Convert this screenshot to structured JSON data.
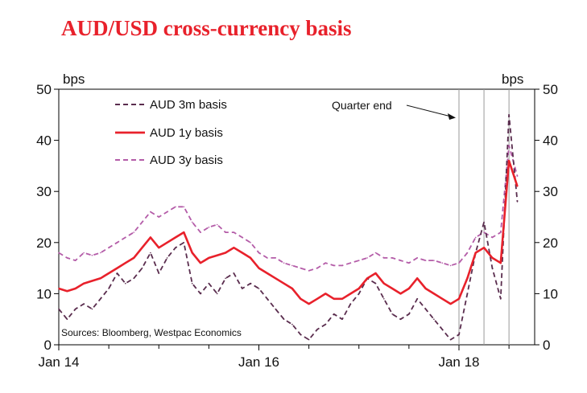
{
  "chart_data": {
    "type": "line",
    "title": "AUD/USD cross-currency basis",
    "y_left_unit": "bps",
    "y_right_unit": "bps",
    "ylim": [
      0,
      50
    ],
    "yticks": [
      0,
      10,
      20,
      30,
      40,
      50
    ],
    "x_range": [
      "2014-01",
      "2018-08"
    ],
    "x_ticks": [
      {
        "label": "Jan 14",
        "date": "2014-01"
      },
      {
        "label": "Jan 16",
        "date": "2016-01"
      },
      {
        "label": "Jan 18",
        "date": "2018-01"
      }
    ],
    "annotation": "Quarter end",
    "quarter_end_lines": [
      "2018-01",
      "2018-04",
      "2018-07"
    ],
    "source": "Sources: Bloomberg, Westpac Economics",
    "grid": false,
    "legend_position": "top-left",
    "series": [
      {
        "name": "AUD 3m basis",
        "style": "dashed",
        "color": "#5a2d4e",
        "points": [
          [
            "2014-01",
            7
          ],
          [
            "2014-02",
            5
          ],
          [
            "2014-03",
            7
          ],
          [
            "2014-04",
            8
          ],
          [
            "2014-05",
            7
          ],
          [
            "2014-06",
            9
          ],
          [
            "2014-07",
            11
          ],
          [
            "2014-08",
            14
          ],
          [
            "2014-09",
            12
          ],
          [
            "2014-10",
            13
          ],
          [
            "2014-11",
            15
          ],
          [
            "2014-12",
            18
          ],
          [
            "2015-01",
            14
          ],
          [
            "2015-02",
            17
          ],
          [
            "2015-03",
            19
          ],
          [
            "2015-04",
            20
          ],
          [
            "2015-05",
            12
          ],
          [
            "2015-06",
            10
          ],
          [
            "2015-07",
            12
          ],
          [
            "2015-08",
            10
          ],
          [
            "2015-09",
            13
          ],
          [
            "2015-10",
            14
          ],
          [
            "2015-11",
            11
          ],
          [
            "2015-12",
            12
          ],
          [
            "2016-01",
            11
          ],
          [
            "2016-02",
            9
          ],
          [
            "2016-03",
            7
          ],
          [
            "2016-04",
            5
          ],
          [
            "2016-05",
            4
          ],
          [
            "2016-06",
            2
          ],
          [
            "2016-07",
            1
          ],
          [
            "2016-08",
            3
          ],
          [
            "2016-09",
            4
          ],
          [
            "2016-10",
            6
          ],
          [
            "2016-11",
            5
          ],
          [
            "2016-12",
            8
          ],
          [
            "2017-01",
            10
          ],
          [
            "2017-02",
            13
          ],
          [
            "2017-03",
            12
          ],
          [
            "2017-04",
            9
          ],
          [
            "2017-05",
            6
          ],
          [
            "2017-06",
            5
          ],
          [
            "2017-07",
            6
          ],
          [
            "2017-08",
            9
          ],
          [
            "2017-09",
            7
          ],
          [
            "2017-10",
            5
          ],
          [
            "2017-11",
            3
          ],
          [
            "2017-12",
            1
          ],
          [
            "2018-01",
            2
          ],
          [
            "2018-02",
            10
          ],
          [
            "2018-03",
            18
          ],
          [
            "2018-04",
            24
          ],
          [
            "2018-05",
            15
          ],
          [
            "2018-06",
            9
          ],
          [
            "2018-07",
            45
          ],
          [
            "2018-08",
            28
          ]
        ]
      },
      {
        "name": "AUD 1y basis",
        "style": "solid",
        "color": "#e8212b",
        "points": [
          [
            "2014-01",
            11
          ],
          [
            "2014-02",
            10.5
          ],
          [
            "2014-03",
            11
          ],
          [
            "2014-04",
            12
          ],
          [
            "2014-05",
            12.5
          ],
          [
            "2014-06",
            13
          ],
          [
            "2014-07",
            14
          ],
          [
            "2014-08",
            15
          ],
          [
            "2014-09",
            16
          ],
          [
            "2014-10",
            17
          ],
          [
            "2014-11",
            19
          ],
          [
            "2014-12",
            21
          ],
          [
            "2015-01",
            19
          ],
          [
            "2015-02",
            20
          ],
          [
            "2015-03",
            21
          ],
          [
            "2015-04",
            22
          ],
          [
            "2015-05",
            18
          ],
          [
            "2015-06",
            16
          ],
          [
            "2015-07",
            17
          ],
          [
            "2015-08",
            17.5
          ],
          [
            "2015-09",
            18
          ],
          [
            "2015-10",
            19
          ],
          [
            "2015-11",
            18
          ],
          [
            "2015-12",
            17
          ],
          [
            "2016-01",
            15
          ],
          [
            "2016-02",
            14
          ],
          [
            "2016-03",
            13
          ],
          [
            "2016-04",
            12
          ],
          [
            "2016-05",
            11
          ],
          [
            "2016-06",
            9
          ],
          [
            "2016-07",
            8
          ],
          [
            "2016-08",
            9
          ],
          [
            "2016-09",
            10
          ],
          [
            "2016-10",
            9
          ],
          [
            "2016-11",
            9
          ],
          [
            "2016-12",
            10
          ],
          [
            "2017-01",
            11
          ],
          [
            "2017-02",
            13
          ],
          [
            "2017-03",
            14
          ],
          [
            "2017-04",
            12
          ],
          [
            "2017-05",
            11
          ],
          [
            "2017-06",
            10
          ],
          [
            "2017-07",
            11
          ],
          [
            "2017-08",
            13
          ],
          [
            "2017-09",
            11
          ],
          [
            "2017-10",
            10
          ],
          [
            "2017-11",
            9
          ],
          [
            "2017-12",
            8
          ],
          [
            "2018-01",
            9
          ],
          [
            "2018-02",
            13
          ],
          [
            "2018-03",
            18
          ],
          [
            "2018-04",
            19
          ],
          [
            "2018-05",
            17
          ],
          [
            "2018-06",
            16
          ],
          [
            "2018-07",
            36
          ],
          [
            "2018-08",
            31
          ]
        ]
      },
      {
        "name": "AUD 3y basis",
        "style": "dashed",
        "color": "#b45ca8",
        "points": [
          [
            "2014-01",
            18
          ],
          [
            "2014-02",
            17
          ],
          [
            "2014-03",
            16.5
          ],
          [
            "2014-04",
            18
          ],
          [
            "2014-05",
            17.5
          ],
          [
            "2014-06",
            18
          ],
          [
            "2014-07",
            19
          ],
          [
            "2014-08",
            20
          ],
          [
            "2014-09",
            21
          ],
          [
            "2014-10",
            22
          ],
          [
            "2014-11",
            24
          ],
          [
            "2014-12",
            26
          ],
          [
            "2015-01",
            25
          ],
          [
            "2015-02",
            26
          ],
          [
            "2015-03",
            27
          ],
          [
            "2015-04",
            27
          ],
          [
            "2015-05",
            24
          ],
          [
            "2015-06",
            22
          ],
          [
            "2015-07",
            23
          ],
          [
            "2015-08",
            23.5
          ],
          [
            "2015-09",
            22
          ],
          [
            "2015-10",
            22
          ],
          [
            "2015-11",
            21
          ],
          [
            "2015-12",
            20
          ],
          [
            "2016-01",
            18
          ],
          [
            "2016-02",
            17
          ],
          [
            "2016-03",
            17
          ],
          [
            "2016-04",
            16
          ],
          [
            "2016-05",
            15.5
          ],
          [
            "2016-06",
            15
          ],
          [
            "2016-07",
            14.5
          ],
          [
            "2016-08",
            15
          ],
          [
            "2016-09",
            16
          ],
          [
            "2016-10",
            15.5
          ],
          [
            "2016-11",
            15.5
          ],
          [
            "2016-12",
            16
          ],
          [
            "2017-01",
            16.5
          ],
          [
            "2017-02",
            17
          ],
          [
            "2017-03",
            18
          ],
          [
            "2017-04",
            17
          ],
          [
            "2017-05",
            17
          ],
          [
            "2017-06",
            16.5
          ],
          [
            "2017-07",
            16
          ],
          [
            "2017-08",
            17
          ],
          [
            "2017-09",
            16.5
          ],
          [
            "2017-10",
            16.5
          ],
          [
            "2017-11",
            16
          ],
          [
            "2017-12",
            15.5
          ],
          [
            "2018-01",
            16
          ],
          [
            "2018-02",
            18
          ],
          [
            "2018-03",
            21
          ],
          [
            "2018-04",
            22
          ],
          [
            "2018-05",
            21
          ],
          [
            "2018-06",
            22
          ],
          [
            "2018-07",
            39
          ],
          [
            "2018-08",
            33
          ]
        ]
      }
    ]
  }
}
